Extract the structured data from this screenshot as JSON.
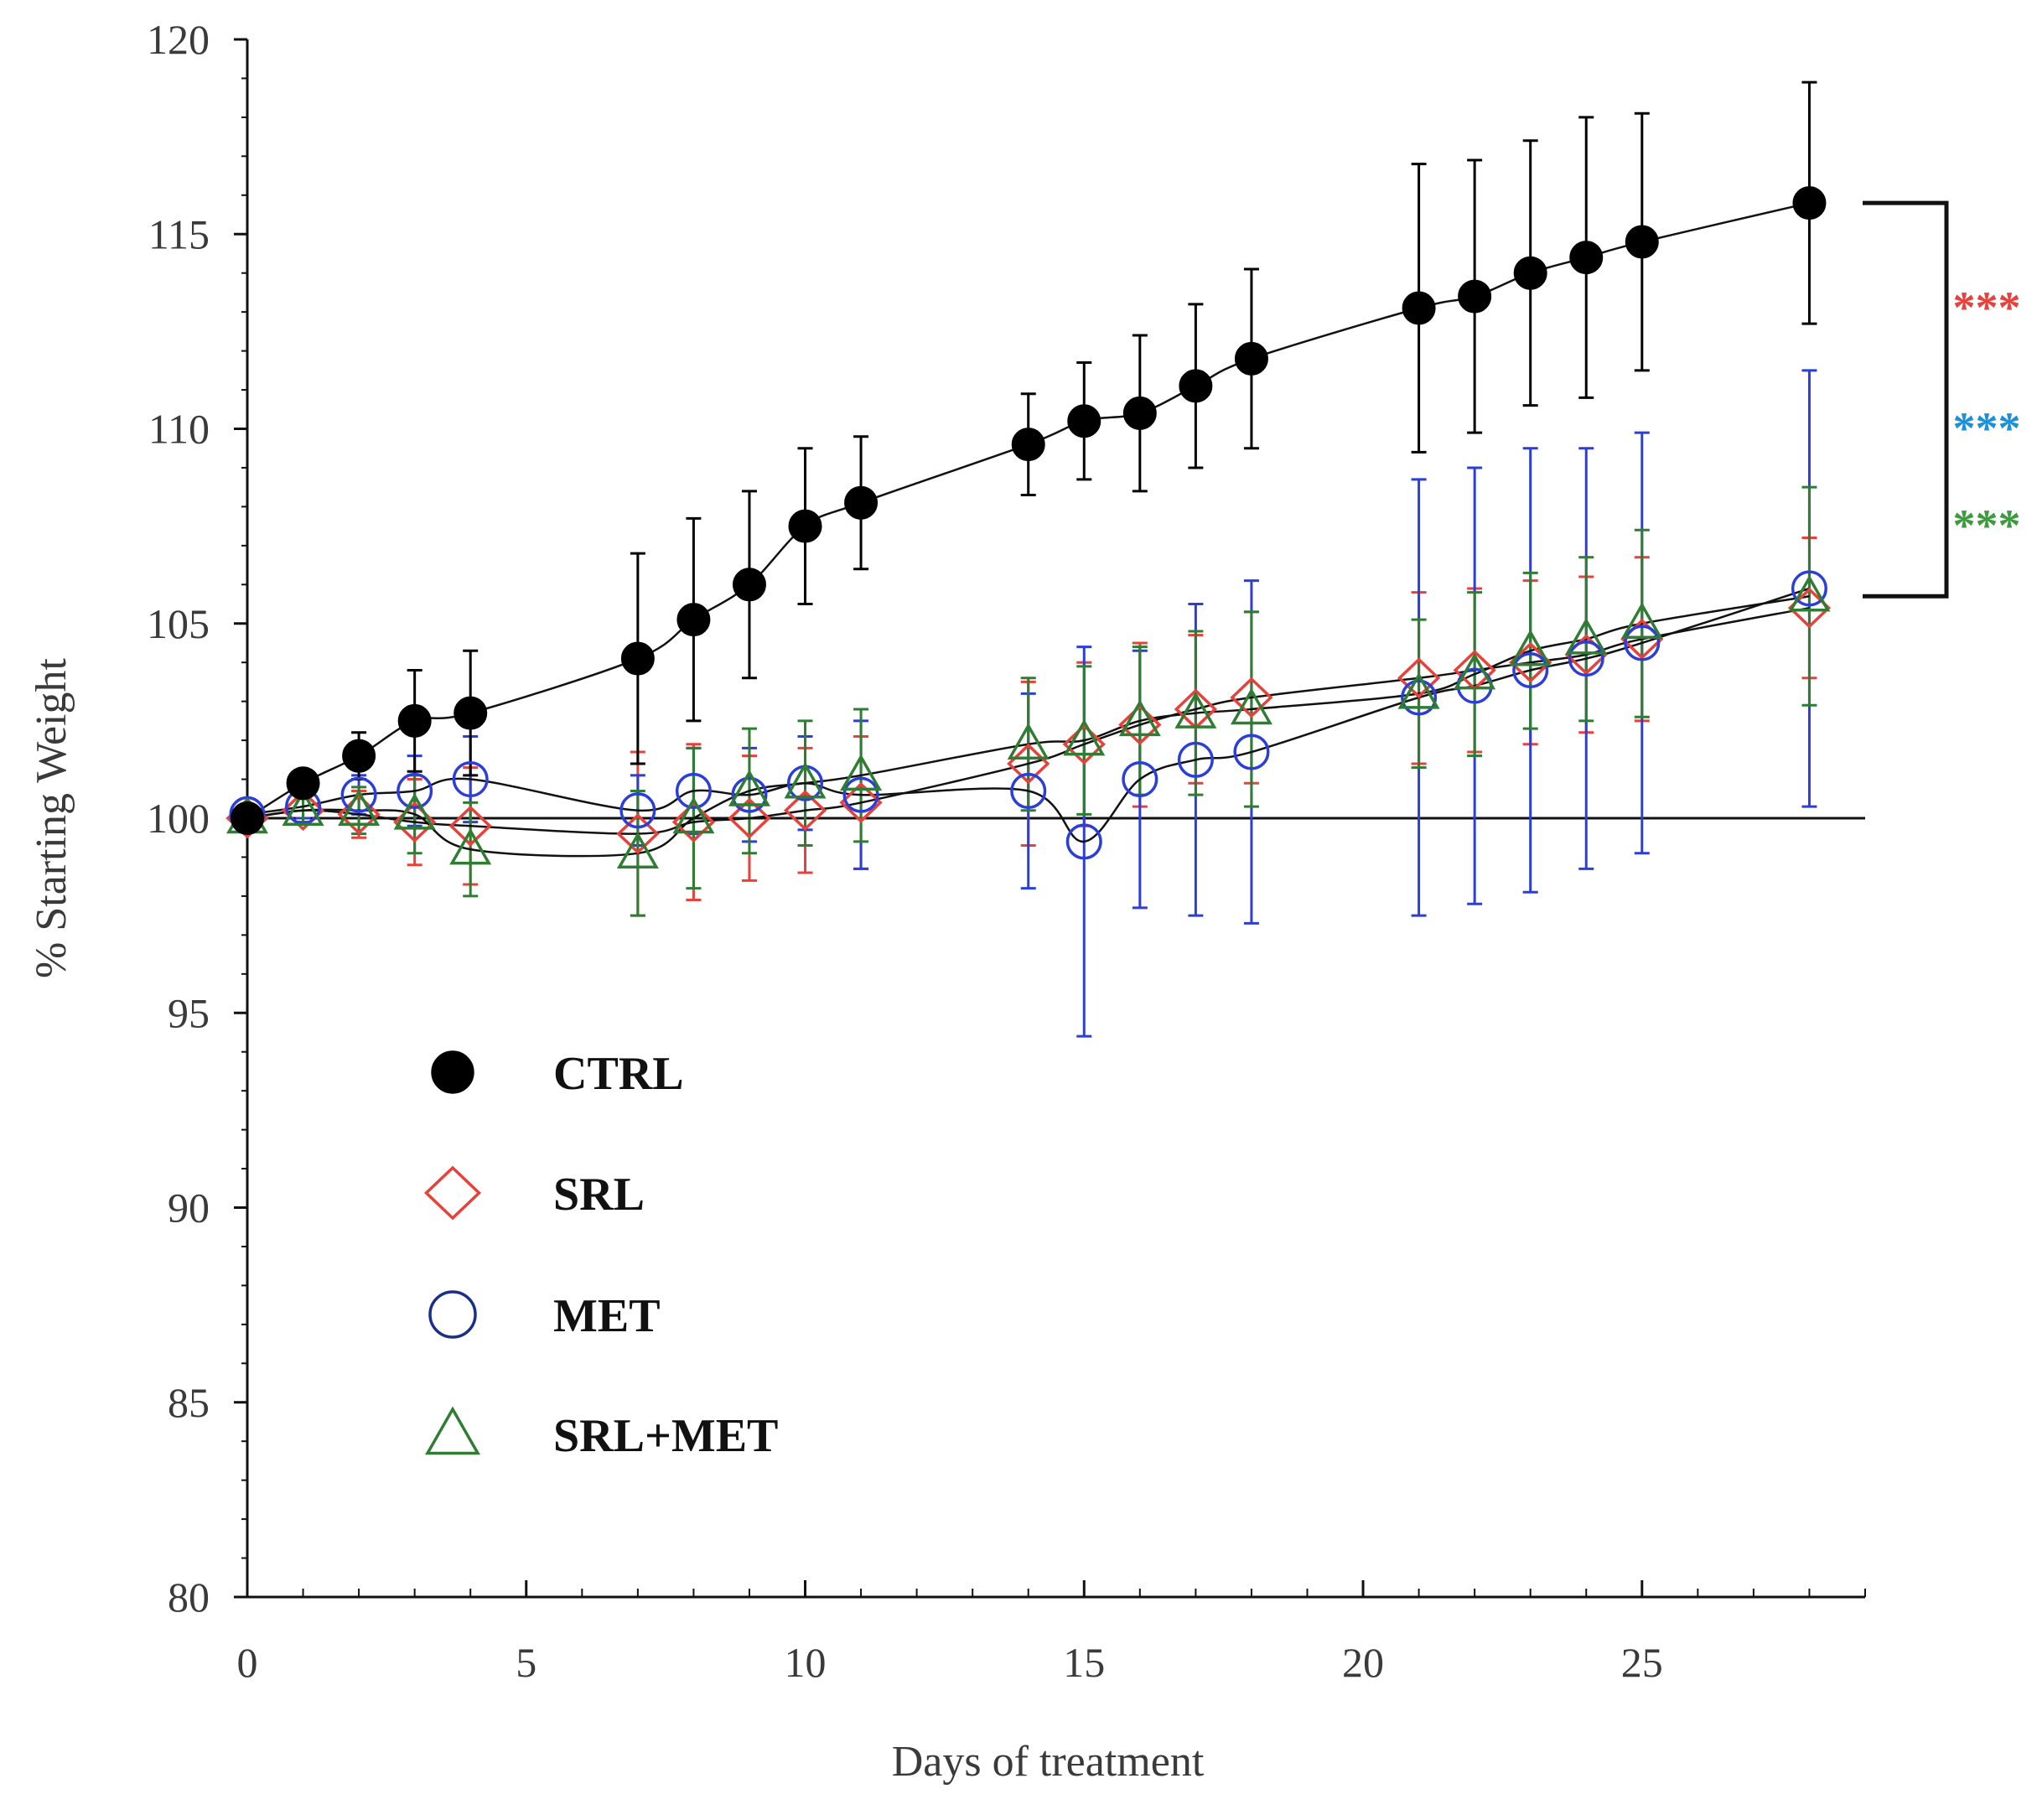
{
  "chart_data": {
    "type": "line",
    "title": "",
    "xlabel": "Days of treatment",
    "ylabel": "% Starting Weight",
    "xlim": [
      0,
      29
    ],
    "ylim": [
      80,
      120
    ],
    "xticks": [
      0,
      5,
      10,
      15,
      20,
      25
    ],
    "xtick_labels": [
      "0",
      "5",
      "10",
      "15",
      "20",
      "25"
    ],
    "yticks": [
      80,
      85,
      90,
      95,
      100,
      105,
      110,
      115,
      120
    ],
    "ytick_labels": [
      "80",
      "85",
      "90",
      "95",
      "100",
      "105",
      "110",
      "115",
      "120"
    ],
    "reference_line": 100,
    "legend_position": "lower-left",
    "series": [
      {
        "name": "CTRL",
        "marker": "filled-circle",
        "color": "#000000",
        "x": [
          0,
          1,
          2,
          3,
          4,
          7,
          8,
          9,
          10,
          11,
          14,
          15,
          16,
          17,
          18,
          21,
          22,
          23,
          24,
          25,
          28
        ],
        "values": [
          100,
          100.9,
          101.6,
          102.5,
          102.7,
          104.1,
          105.1,
          106.0,
          107.5,
          108.1,
          109.6,
          110.2,
          110.4,
          111.1,
          111.8,
          113.1,
          113.4,
          114.0,
          114.4,
          114.8,
          115.8
        ],
        "error": [
          0.1,
          0.2,
          0.6,
          1.3,
          1.6,
          2.7,
          2.6,
          2.4,
          2.0,
          1.7,
          1.3,
          1.5,
          2.0,
          2.1,
          2.3,
          3.7,
          3.5,
          3.4,
          3.6,
          3.3,
          3.1
        ]
      },
      {
        "name": "SRL",
        "marker": "open-diamond",
        "color": "#e8403a",
        "x": [
          0,
          1,
          2,
          3,
          4,
          7,
          8,
          9,
          10,
          11,
          14,
          15,
          16,
          17,
          18,
          21,
          22,
          23,
          24,
          25,
          28
        ],
        "values": [
          100,
          100.2,
          100.1,
          99.9,
          99.8,
          99.6,
          99.9,
          100.0,
          100.2,
          100.4,
          101.4,
          101.9,
          102.4,
          102.8,
          103.1,
          103.6,
          103.8,
          104.0,
          104.2,
          104.6,
          105.4
        ],
        "error": [
          0.1,
          0.3,
          0.6,
          1.1,
          1.5,
          2.1,
          2.0,
          1.6,
          1.6,
          1.7,
          2.1,
          2.1,
          2.1,
          1.9,
          2.2,
          2.2,
          2.1,
          2.1,
          2.0,
          2.1,
          1.8
        ]
      },
      {
        "name": "MET",
        "marker": "open-circle",
        "color": "#2b3fd8",
        "x": [
          0,
          1,
          2,
          3,
          4,
          7,
          8,
          9,
          10,
          11,
          14,
          15,
          16,
          17,
          18,
          21,
          22,
          23,
          24,
          25,
          28
        ],
        "values": [
          100.1,
          100.3,
          100.6,
          100.7,
          101.0,
          100.2,
          100.7,
          100.6,
          100.9,
          100.6,
          100.7,
          99.4,
          101.0,
          101.5,
          101.7,
          103.1,
          103.4,
          103.8,
          104.1,
          104.5,
          105.9
        ],
        "error": [
          0.1,
          0.3,
          0.5,
          0.9,
          1.1,
          0.9,
          1.1,
          1.2,
          1.2,
          1.9,
          2.5,
          5.0,
          3.3,
          4.0,
          4.4,
          5.6,
          5.6,
          5.7,
          5.4,
          5.4,
          5.6
        ]
      },
      {
        "name": "SRL+MET",
        "marker": "open-triangle",
        "color": "#2e7d32",
        "x": [
          0,
          1,
          2,
          3,
          4,
          7,
          8,
          9,
          10,
          11,
          14,
          15,
          16,
          17,
          18,
          21,
          22,
          23,
          24,
          25,
          28
        ],
        "values": [
          100.0,
          100.2,
          100.2,
          100.1,
          99.2,
          99.1,
          100.0,
          100.7,
          100.9,
          101.1,
          101.9,
          102.0,
          102.5,
          102.7,
          102.8,
          103.2,
          103.7,
          104.3,
          104.6,
          105.0,
          105.7
        ],
        "error": [
          0.1,
          0.3,
          0.6,
          1.0,
          1.2,
          1.6,
          1.8,
          1.6,
          1.6,
          1.7,
          1.7,
          1.9,
          1.9,
          2.1,
          2.5,
          1.9,
          2.1,
          2.0,
          2.1,
          2.4,
          2.8
        ]
      }
    ],
    "significance": {
      "bracket_from": 115.8,
      "bracket_to": 105.7,
      "marks": [
        {
          "label": "***",
          "color": "#e8403a",
          "series": "SRL"
        },
        {
          "label": "***",
          "color": "#1e90d8",
          "series": "MET"
        },
        {
          "label": "***",
          "color": "#3e9a3e",
          "series": "SRL+MET"
        }
      ]
    }
  }
}
